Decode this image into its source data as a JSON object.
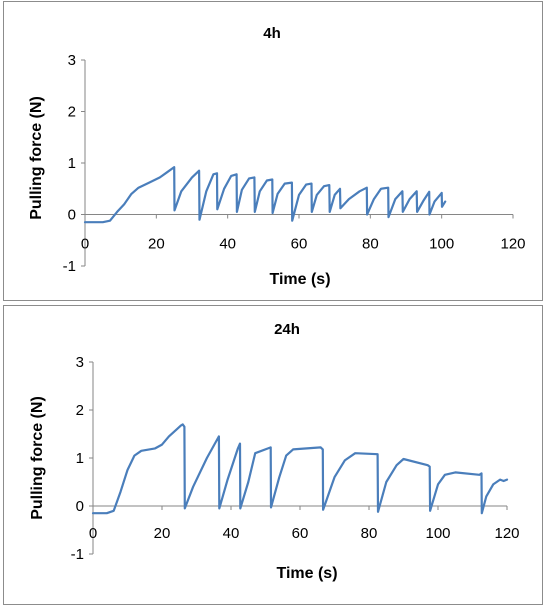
{
  "chart_data": [
    {
      "type": "line",
      "title": "4h",
      "xlabel": "Time (s)",
      "ylabel": "Pulling force (N)",
      "xlim": [
        0,
        120
      ],
      "ylim": [
        -1,
        3
      ],
      "xticks": [
        "0",
        "20",
        "40",
        "60",
        "80",
        "100",
        "120"
      ],
      "yticks": [
        "-1",
        "0",
        "1",
        "2",
        "3"
      ],
      "grid": false,
      "legend": "none",
      "color": "#4a7ebb",
      "x": [
        0,
        5,
        7,
        9,
        11,
        13,
        15,
        18,
        21,
        23,
        25,
        25.1,
        27,
        30,
        32,
        32.1,
        34,
        36,
        37,
        37.1,
        39,
        41,
        42.5,
        42.6,
        44,
        46,
        47.5,
        47.6,
        49,
        51,
        52.5,
        52.6,
        54,
        56,
        58,
        58.1,
        60,
        62,
        63.5,
        63.6,
        65,
        67,
        68.5,
        68.6,
        70,
        71.5,
        71.6,
        74,
        77,
        79,
        79.1,
        81,
        83,
        85,
        85.1,
        87,
        89,
        89.1,
        91,
        93,
        93.1,
        95,
        96.5,
        96.6,
        98,
        100,
        100.1,
        101
      ],
      "y": [
        -0.15,
        -0.15,
        -0.12,
        0.05,
        0.2,
        0.4,
        0.52,
        0.62,
        0.72,
        0.82,
        0.92,
        0.08,
        0.45,
        0.72,
        0.85,
        -0.1,
        0.45,
        0.78,
        0.8,
        0.1,
        0.5,
        0.75,
        0.78,
        0.05,
        0.48,
        0.7,
        0.72,
        0.05,
        0.45,
        0.66,
        0.68,
        0.03,
        0.4,
        0.6,
        0.62,
        -0.12,
        0.38,
        0.58,
        0.6,
        0.05,
        0.38,
        0.55,
        0.57,
        0.05,
        0.38,
        0.5,
        0.12,
        0.3,
        0.45,
        0.52,
        0.0,
        0.3,
        0.5,
        0.52,
        -0.05,
        0.3,
        0.45,
        0.05,
        0.3,
        0.45,
        0.05,
        0.28,
        0.44,
        0.0,
        0.25,
        0.42,
        0.15,
        0.25
      ]
    },
    {
      "type": "line",
      "title": "24h",
      "xlabel": "Time (s)",
      "ylabel": "Pulling force (N)",
      "xlim": [
        0,
        120
      ],
      "ylim": [
        -1,
        3
      ],
      "xticks": [
        "0",
        "20",
        "40",
        "60",
        "80",
        "100",
        "120"
      ],
      "yticks": [
        "-1",
        "0",
        "1",
        "2",
        "3"
      ],
      "grid": false,
      "legend": "none",
      "color": "#4a7ebb",
      "x": [
        0,
        4,
        6,
        8,
        10,
        12,
        14,
        18,
        20,
        22,
        24,
        25.5,
        26,
        26.5,
        26.6,
        29,
        33,
        36.5,
        36.6,
        39,
        42,
        42.6,
        42.7,
        45,
        47,
        51.5,
        51.6,
        54,
        56,
        58,
        66,
        66.6,
        66.7,
        70,
        73,
        76,
        82.5,
        82.6,
        85,
        88,
        90,
        97,
        97.6,
        97.7,
        100,
        102,
        105,
        112,
        112.6,
        112.7,
        114,
        116,
        118,
        119,
        120
      ],
      "y": [
        -0.15,
        -0.15,
        -0.1,
        0.3,
        0.75,
        1.05,
        1.15,
        1.2,
        1.28,
        1.45,
        1.58,
        1.68,
        1.7,
        1.65,
        -0.05,
        0.4,
        1.0,
        1.45,
        -0.05,
        0.55,
        1.2,
        1.3,
        -0.05,
        0.5,
        1.1,
        1.22,
        -0.03,
        0.6,
        1.05,
        1.18,
        1.22,
        1.18,
        -0.08,
        0.6,
        0.95,
        1.1,
        1.08,
        -0.12,
        0.5,
        0.85,
        0.98,
        0.85,
        0.82,
        -0.1,
        0.45,
        0.65,
        0.7,
        0.65,
        0.68,
        -0.15,
        0.2,
        0.45,
        0.55,
        0.52,
        0.55
      ]
    }
  ]
}
